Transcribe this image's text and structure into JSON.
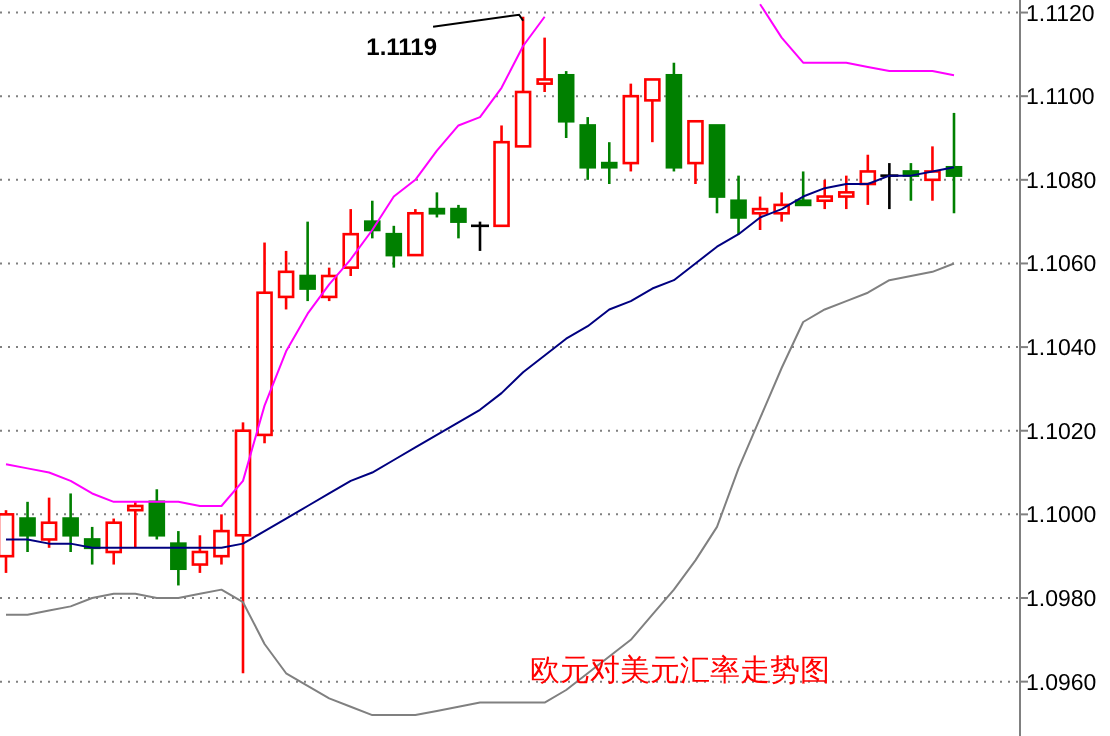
{
  "chart_data": {
    "type": "candlestick",
    "title": "欧元对美元汇率走势图",
    "categories": [
      null,
      null,
      null,
      null,
      null,
      null,
      null,
      null,
      null,
      null,
      null,
      null,
      null,
      null,
      null,
      null,
      null,
      null,
      null,
      null,
      null,
      null,
      null,
      null,
      null,
      null,
      null,
      null,
      null,
      null,
      null,
      null,
      null,
      null,
      null,
      null,
      null,
      null,
      null,
      null,
      null,
      null,
      null,
      null,
      null
    ],
    "ohlc": [
      [
        1.099,
        1.1001,
        1.0986,
        1.1
      ],
      [
        1.0999,
        1.1003,
        1.0991,
        1.0995
      ],
      [
        1.0994,
        1.1004,
        1.0992,
        1.0998
      ],
      [
        1.0999,
        1.1005,
        1.0991,
        1.0995
      ],
      [
        1.0994,
        1.0997,
        1.0988,
        1.0992
      ],
      [
        1.0991,
        1.0999,
        1.0988,
        1.0998
      ],
      [
        1.1001,
        1.1003,
        1.0992,
        1.1002
      ],
      [
        1.1003,
        1.1006,
        1.0994,
        1.0995
      ],
      [
        1.0993,
        1.0996,
        1.0983,
        1.0987
      ],
      [
        1.0988,
        1.0995,
        1.0986,
        1.0991
      ],
      [
        1.099,
        1.1,
        1.0988,
        1.0996
      ],
      [
        1.0995,
        1.1022,
        1.0962,
        1.102
      ],
      [
        1.1019,
        1.1065,
        1.1017,
        1.1053
      ],
      [
        1.1052,
        1.1063,
        1.1049,
        1.1058
      ],
      [
        1.1057,
        1.107,
        1.1051,
        1.1054
      ],
      [
        1.1052,
        1.1059,
        1.1051,
        1.1057
      ],
      [
        1.1059,
        1.1073,
        1.1057,
        1.1067
      ],
      [
        1.107,
        1.1075,
        1.1066,
        1.1068
      ],
      [
        1.1067,
        1.1069,
        1.1059,
        1.1062
      ],
      [
        1.1062,
        1.1073,
        1.1062,
        1.1072
      ],
      [
        1.1073,
        1.1077,
        1.1071,
        1.1072
      ],
      [
        1.1073,
        1.1074,
        1.1066,
        1.107
      ],
      [
        1.1069,
        1.107,
        1.1063,
        1.1069
      ],
      [
        1.1069,
        1.1093,
        1.1069,
        1.1089
      ],
      [
        1.1088,
        1.1119,
        1.1088,
        1.1101
      ],
      [
        1.1103,
        1.1114,
        1.1101,
        1.1104
      ],
      [
        1.1105,
        1.1106,
        1.109,
        1.1094
      ],
      [
        1.1093,
        1.1095,
        1.108,
        1.1083
      ],
      [
        1.1084,
        1.1089,
        1.1079,
        1.1083
      ],
      [
        1.1084,
        1.1103,
        1.1082,
        1.11
      ],
      [
        1.1099,
        1.1104,
        1.1089,
        1.1104
      ],
      [
        1.1105,
        1.1108,
        1.1082,
        1.1083
      ],
      [
        1.1084,
        1.1094,
        1.1079,
        1.1094
      ],
      [
        1.1093,
        1.1093,
        1.1072,
        1.1076
      ],
      [
        1.1075,
        1.1081,
        1.1067,
        1.1071
      ],
      [
        1.1072,
        1.1076,
        1.1068,
        1.1073
      ],
      [
        1.1072,
        1.1077,
        1.107,
        1.1074
      ],
      [
        1.1075,
        1.1082,
        1.1074,
        1.1074
      ],
      [
        1.1075,
        1.108,
        1.1073,
        1.1076
      ],
      [
        1.1076,
        1.1081,
        1.1073,
        1.1077
      ],
      [
        1.1079,
        1.1086,
        1.1074,
        1.1082
      ],
      [
        1.1081,
        1.1084,
        1.1073,
        1.1081
      ],
      [
        1.1082,
        1.1084,
        1.1075,
        1.1081
      ],
      [
        1.108,
        1.1088,
        1.1075,
        1.1082
      ],
      [
        1.1083,
        1.1096,
        1.1072,
        1.1081
      ]
    ],
    "colors": [
      "#ff0000",
      "#008000",
      "#ff0000",
      "#008000",
      "#008000",
      "#ff0000",
      "#ff0000",
      "#008000",
      "#008000",
      "#ff0000",
      "#ff0000",
      "#ff0000",
      "#ff0000",
      "#ff0000",
      "#008000",
      "#ff0000",
      "#ff0000",
      "#008000",
      "#008000",
      "#ff0000",
      "#008000",
      "#008000",
      "#000000",
      "#ff0000",
      "#ff0000",
      "#ff0000",
      "#008000",
      "#008000",
      "#008000",
      "#ff0000",
      "#ff0000",
      "#008000",
      "#ff0000",
      "#008000",
      "#008000",
      "#ff0000",
      "#ff0000",
      "#008000",
      "#ff0000",
      "#ff0000",
      "#ff0000",
      "#000000",
      "#008000",
      "#ff0000",
      "#008000"
    ],
    "series": [
      {
        "type": "line",
        "color": "#ff00ff",
        "values": [
          1.1012,
          1.1011,
          1.101,
          1.1008,
          1.1005,
          1.1003,
          1.1003,
          1.1003,
          1.1003,
          1.1002,
          1.1002,
          1.1008,
          1.1026,
          1.1039,
          1.1048,
          1.1055,
          1.1061,
          1.1068,
          1.1076,
          1.108,
          1.1087,
          1.1093,
          1.1095,
          1.1102,
          1.1112,
          1.1119,
          null,
          null,
          null,
          null,
          null,
          null,
          null,
          null,
          null,
          1.1122,
          1.1114,
          1.1108,
          1.1108,
          1.1108,
          1.1107,
          1.1106,
          1.1106,
          1.1106,
          1.1105
        ]
      },
      {
        "type": "line",
        "color": "#000080",
        "values": [
          1.0994,
          1.0994,
          1.0993,
          1.0993,
          1.0992,
          1.0992,
          1.0992,
          1.0992,
          1.0992,
          1.0992,
          1.0992,
          1.0993,
          1.0996,
          1.0999,
          1.1002,
          1.1005,
          1.1008,
          1.101,
          1.1013,
          1.1016,
          1.1019,
          1.1022,
          1.1025,
          1.1029,
          1.1034,
          1.1038,
          1.1042,
          1.1045,
          1.1049,
          1.1051,
          1.1054,
          1.1056,
          1.106,
          1.1064,
          1.1067,
          1.1071,
          1.1073,
          1.1076,
          1.1078,
          1.1079,
          1.1079,
          1.1081,
          1.1081,
          1.1082,
          1.1083
        ]
      },
      {
        "type": "line",
        "color": "#808080",
        "values": [
          1.0976,
          1.0976,
          1.0977,
          1.0978,
          1.098,
          1.0981,
          1.0981,
          1.098,
          1.098,
          1.0981,
          1.0982,
          1.0979,
          1.0969,
          1.0962,
          1.0959,
          1.0956,
          1.0954,
          1.0952,
          1.0952,
          1.0952,
          1.0953,
          1.0954,
          1.0955,
          1.0955,
          1.0955,
          1.0955,
          1.0958,
          1.0962,
          1.0966,
          1.097,
          1.0976,
          1.0982,
          1.0989,
          1.0997,
          1.1011,
          1.1023,
          1.1035,
          1.1046,
          1.1049,
          1.1051,
          1.1053,
          1.1056,
          1.1057,
          1.1058,
          1.106
        ]
      }
    ],
    "ylim": [
      1.0947,
      1.1123
    ],
    "yticks": [
      {
        "value": 1.096,
        "label": "1.0960"
      },
      {
        "value": 1.098,
        "label": "1.0980"
      },
      {
        "value": 1.1,
        "label": "1.1000"
      },
      {
        "value": 1.102,
        "label": "1.1020"
      },
      {
        "value": 1.104,
        "label": "1.1040"
      },
      {
        "value": 1.106,
        "label": "1.1060"
      },
      {
        "value": 1.108,
        "label": "1.1080"
      },
      {
        "value": 1.11,
        "label": "1.1100"
      },
      {
        "value": 1.112,
        "label": "1.1120"
      }
    ],
    "grid": "y",
    "tick_labels": "y",
    "annotations": [
      "1.1119"
    ]
  }
}
